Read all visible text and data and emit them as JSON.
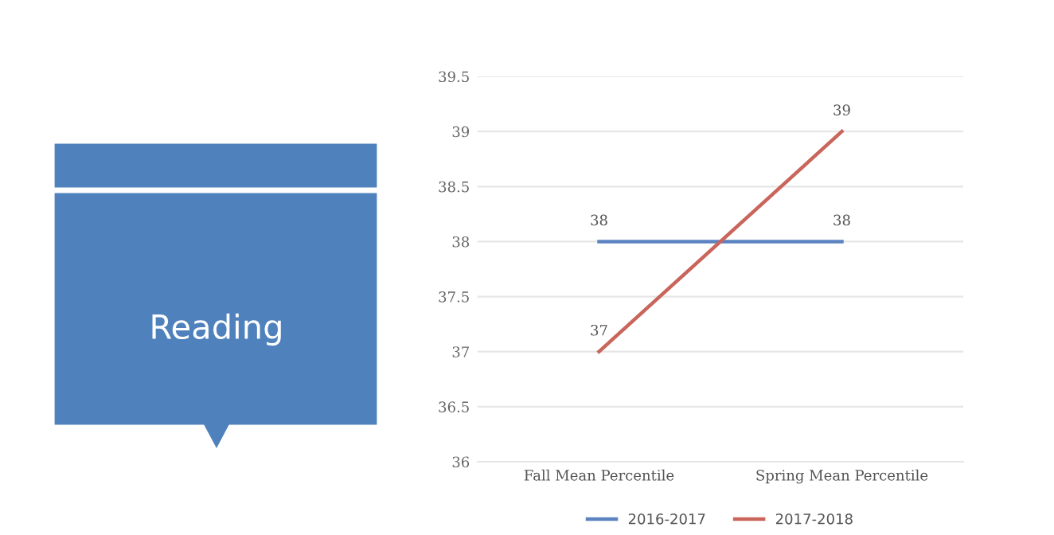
{
  "chart_data": {
    "type": "line",
    "title": "Reading",
    "categories": [
      "Fall Mean Percentile",
      "Spring Mean Percentile"
    ],
    "series": [
      {
        "name": "2016-2017",
        "color": "#5b83c0",
        "values": [
          38,
          38
        ]
      },
      {
        "name": "2017-2018",
        "color": "#c9655b",
        "values": [
          37,
          39
        ]
      }
    ],
    "ylim": [
      36,
      39.5
    ],
    "yticks": [
      36,
      36.5,
      37,
      37.5,
      38,
      38.5,
      39,
      39.5
    ],
    "grid": "y",
    "legend": "bottom",
    "data_labels": true,
    "marker": "none",
    "line_style": "solid"
  }
}
